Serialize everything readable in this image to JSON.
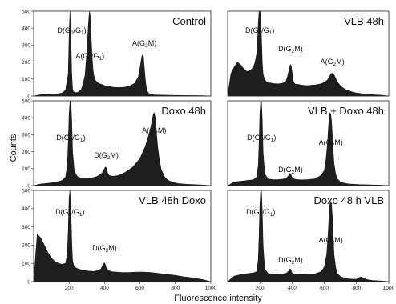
{
  "figure": {
    "ylabel": "Counts",
    "xlabel": "Fluorescence intensity"
  },
  "chart_data": [
    {
      "type": "area",
      "title": "Control",
      "xlim": [
        0,
        1000
      ],
      "ylim": [
        0,
        500
      ],
      "x_ticks": [],
      "y_ticks": [
        0,
        100,
        200,
        300,
        400,
        500
      ],
      "series": [
        {
          "x": [
            0,
            40,
            60,
            80,
            100,
            120,
            140,
            160,
            180,
            195,
            200,
            205,
            210,
            215,
            220,
            225,
            235,
            250,
            270,
            290,
            300,
            310,
            315,
            320,
            325,
            330,
            335,
            340,
            350,
            365,
            380,
            400,
            420,
            450,
            480,
            510,
            540,
            570,
            590,
            600,
            610,
            615,
            620,
            625,
            630,
            635,
            640,
            650,
            660,
            680,
            700,
            740,
            780,
            820,
            860,
            900,
            950,
            1000
          ],
          "y": [
            0,
            8,
            10,
            10,
            12,
            12,
            14,
            18,
            35,
            130,
            350,
            520,
            350,
            130,
            40,
            25,
            20,
            22,
            40,
            120,
            260,
            440,
            520,
            470,
            340,
            230,
            160,
            120,
            90,
            75,
            70,
            62,
            58,
            52,
            50,
            52,
            58,
            75,
            110,
            165,
            230,
            245,
            230,
            165,
            105,
            60,
            30,
            15,
            10,
            7,
            6,
            5,
            4,
            4,
            3,
            3,
            2,
            0
          ]
        }
      ],
      "annotations": [
        {
          "base": "D",
          "sub": "G",
          "sub_sub": "0",
          "suffix": "/G",
          "suffix_sub": "1"
        },
        {
          "base": "A",
          "sub": "G",
          "sub_sub": "0",
          "suffix": "/G",
          "suffix_sub": "1"
        },
        {
          "base": "A",
          "sub": "G",
          "sub_sub": "2",
          "suffix": "M",
          "suffix_sub": ""
        }
      ]
    },
    {
      "type": "area",
      "title": "VLB 48h",
      "xlim": [
        0,
        1000
      ],
      "ylim": [
        0,
        500
      ],
      "x_ticks": [],
      "y_ticks": [],
      "series": [
        {
          "x": [
            0,
            20,
            40,
            60,
            80,
            100,
            120,
            140,
            160,
            170,
            180,
            185,
            190,
            195,
            200,
            205,
            210,
            215,
            220,
            230,
            240,
            260,
            280,
            300,
            320,
            340,
            360,
            370,
            380,
            385,
            390,
            395,
            400,
            405,
            410,
            420,
            440,
            460,
            480,
            500,
            520,
            540,
            560,
            580,
            600,
            620,
            630,
            640,
            650,
            660,
            670,
            680,
            700,
            720,
            740,
            760,
            780,
            800,
            850,
            900,
            950,
            1000
          ],
          "y": [
            0,
            130,
            170,
            200,
            185,
            160,
            145,
            150,
            170,
            200,
            250,
            320,
            430,
            520,
            520,
            480,
            340,
            200,
            130,
            95,
            85,
            78,
            74,
            72,
            72,
            75,
            85,
            110,
            150,
            175,
            185,
            175,
            140,
            100,
            80,
            70,
            68,
            64,
            62,
            62,
            63,
            65,
            68,
            72,
            80,
            95,
            110,
            130,
            135,
            125,
            105,
            85,
            60,
            45,
            35,
            28,
            22,
            18,
            12,
            8,
            5,
            0
          ]
        }
      ],
      "annotations": [
        {
          "base": "D",
          "sub": "G",
          "sub_sub": "0",
          "suffix": "/G",
          "suffix_sub": "1"
        },
        {
          "base": "D",
          "sub": "G",
          "sub_sub": "2",
          "suffix": "M",
          "suffix_sub": ""
        },
        {
          "base": "A",
          "sub": "G",
          "sub_sub": "2",
          "suffix": "M",
          "suffix_sub": ""
        }
      ]
    },
    {
      "type": "area",
      "title": "Doxo 48h",
      "xlim": [
        0,
        1000
      ],
      "ylim": [
        0,
        500
      ],
      "x_ticks": [],
      "y_ticks": [
        0,
        100,
        200,
        300,
        400,
        500
      ],
      "series": [
        {
          "x": [
            0,
            40,
            60,
            80,
            100,
            120,
            140,
            160,
            180,
            190,
            195,
            200,
            205,
            210,
            215,
            220,
            230,
            250,
            280,
            310,
            340,
            360,
            380,
            390,
            400,
            405,
            410,
            415,
            420,
            430,
            450,
            480,
            520,
            560,
            600,
            630,
            650,
            660,
            670,
            675,
            680,
            685,
            690,
            695,
            700,
            710,
            720,
            740,
            760,
            790,
            820,
            860,
            900,
            950,
            1000
          ],
          "y": [
            0,
            10,
            12,
            14,
            16,
            20,
            24,
            30,
            50,
            120,
            250,
            420,
            500,
            500,
            380,
            200,
            80,
            50,
            42,
            42,
            48,
            55,
            68,
            80,
            100,
            110,
            105,
            85,
            68,
            58,
            55,
            60,
            80,
            110,
            160,
            230,
            300,
            340,
            390,
            420,
            430,
            410,
            360,
            290,
            230,
            150,
            95,
            50,
            30,
            18,
            12,
            8,
            6,
            4,
            0
          ]
        }
      ],
      "annotations": [
        {
          "base": "D",
          "sub": "G",
          "sub_sub": "0",
          "suffix": "/G",
          "suffix_sub": "1"
        },
        {
          "base": "D",
          "sub": "G",
          "sub_sub": "2",
          "suffix": "M",
          "suffix_sub": ""
        },
        {
          "base": "A",
          "sub": "G",
          "sub_sub": "2",
          "suffix": "M",
          "suffix_sub": ""
        }
      ]
    },
    {
      "type": "area",
      "title": "VLB + Doxo 48h",
      "xlim": [
        0,
        1000
      ],
      "ylim": [
        0,
        500
      ],
      "x_ticks": [],
      "y_ticks": [],
      "series": [
        {
          "x": [
            0,
            40,
            60,
            80,
            100,
            120,
            140,
            160,
            180,
            190,
            195,
            200,
            205,
            210,
            215,
            220,
            230,
            250,
            280,
            310,
            340,
            360,
            370,
            380,
            385,
            390,
            395,
            400,
            410,
            430,
            460,
            500,
            540,
            580,
            600,
            610,
            620,
            625,
            630,
            635,
            640,
            645,
            650,
            655,
            660,
            670,
            680,
            700,
            720,
            750,
            780,
            820,
            860,
            900,
            950,
            1000
          ],
          "y": [
            0,
            20,
            24,
            26,
            28,
            30,
            32,
            35,
            50,
            120,
            250,
            420,
            500,
            500,
            380,
            200,
            70,
            40,
            35,
            35,
            38,
            42,
            50,
            62,
            72,
            70,
            60,
            48,
            40,
            36,
            34,
            36,
            40,
            60,
            90,
            150,
            250,
            330,
            400,
            430,
            420,
            380,
            300,
            200,
            130,
            70,
            40,
            22,
            15,
            10,
            8,
            6,
            5,
            4,
            3,
            0
          ]
        }
      ],
      "annotations": [
        {
          "base": "D",
          "sub": "G",
          "sub_sub": "0",
          "suffix": "/G",
          "suffix_sub": "1"
        },
        {
          "base": "D",
          "sub": "G",
          "sub_sub": "2",
          "suffix": "M",
          "suffix_sub": ""
        },
        {
          "base": "A",
          "sub": "G",
          "sub_sub": "2",
          "suffix": "M",
          "suffix_sub": ""
        }
      ]
    },
    {
      "type": "area",
      "title": "VLB 48h Doxo",
      "xlim": [
        0,
        1000
      ],
      "ylim": [
        0,
        500
      ],
      "x_ticks": [
        200,
        400,
        600,
        800,
        1000
      ],
      "y_ticks": [
        0,
        100,
        200,
        300,
        400,
        500
      ],
      "series": [
        {
          "x": [
            0,
            20,
            40,
            60,
            80,
            100,
            120,
            140,
            160,
            180,
            190,
            195,
            200,
            205,
            210,
            215,
            220,
            230,
            250,
            280,
            310,
            340,
            360,
            380,
            390,
            395,
            400,
            405,
            410,
            420,
            440,
            470,
            500,
            540,
            580,
            620,
            660,
            700,
            750,
            800,
            850,
            900,
            950,
            1000
          ],
          "y": [
            0,
            260,
            240,
            200,
            160,
            130,
            110,
            100,
            95,
            100,
            150,
            280,
            460,
            500,
            400,
            220,
            110,
            80,
            70,
            62,
            58,
            56,
            60,
            70,
            90,
            100,
            102,
            92,
            75,
            62,
            55,
            52,
            50,
            50,
            52,
            52,
            50,
            46,
            40,
            34,
            26,
            20,
            12,
            0
          ]
        }
      ],
      "annotations": [
        {
          "base": "D",
          "sub": "G",
          "sub_sub": "0",
          "suffix": "/G",
          "suffix_sub": "1"
        },
        {
          "base": "D",
          "sub": "G",
          "sub_sub": "2",
          "suffix": "M",
          "suffix_sub": ""
        }
      ]
    },
    {
      "type": "area",
      "title": "Doxo 48 h VLB",
      "xlim": [
        0,
        1000
      ],
      "ylim": [
        0,
        500
      ],
      "x_ticks": [
        200,
        400,
        600,
        800,
        1000
      ],
      "y_ticks": [],
      "series": [
        {
          "x": [
            0,
            40,
            60,
            80,
            100,
            120,
            140,
            160,
            180,
            190,
            195,
            200,
            205,
            210,
            215,
            220,
            230,
            250,
            280,
            310,
            340,
            360,
            370,
            380,
            385,
            390,
            395,
            400,
            410,
            430,
            460,
            500,
            540,
            580,
            600,
            615,
            625,
            630,
            635,
            640,
            645,
            650,
            655,
            660,
            670,
            680,
            700,
            720,
            750,
            780,
            800,
            810,
            820,
            830,
            840,
            860,
            900,
            950,
            1000
          ],
          "y": [
            0,
            30,
            34,
            38,
            42,
            44,
            46,
            48,
            55,
            120,
            250,
            420,
            500,
            500,
            380,
            200,
            70,
            45,
            40,
            40,
            42,
            45,
            50,
            60,
            70,
            68,
            58,
            48,
            42,
            40,
            38,
            40,
            42,
            55,
            80,
            150,
            280,
            370,
            430,
            440,
            420,
            360,
            250,
            150,
            80,
            45,
            28,
            20,
            15,
            13,
            14,
            18,
            24,
            26,
            20,
            12,
            6,
            4,
            0
          ]
        }
      ],
      "annotations": [
        {
          "base": "D",
          "sub": "G",
          "sub_sub": "0",
          "suffix": "/G",
          "suffix_sub": "1"
        },
        {
          "base": "D",
          "sub": "G",
          "sub_sub": "2",
          "suffix": "M",
          "suffix_sub": ""
        },
        {
          "base": "A",
          "sub": "G",
          "sub_sub": "2",
          "suffix": "M",
          "suffix_sub": ""
        }
      ]
    }
  ]
}
